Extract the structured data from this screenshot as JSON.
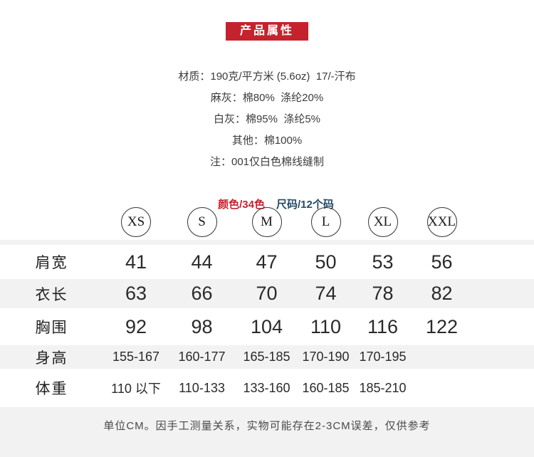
{
  "colors": {
    "banner_red": "#c4232e",
    "count_red": "#c4232e",
    "count_blue": "#254a66",
    "row_gray": "#f2f2f2"
  },
  "header": {
    "title": "产品属性"
  },
  "specs": {
    "lines": [
      "材质：190克/平方米 (5.6oz)  17/-汗布",
      "麻灰：棉80%  涤纶20%",
      "白灰：棉95%  涤纶5%",
      "其他：棉100%",
      "注：001仅白色棉线缝制"
    ],
    "color_count": "颜色/34色",
    "size_count": "尺码/12个码"
  },
  "size_chart": {
    "sizes": [
      "XS",
      "S",
      "M",
      "L",
      "XL",
      "XXL"
    ],
    "rows": [
      {
        "label": "肩宽",
        "values": [
          "41",
          "44",
          "47",
          "50",
          "53",
          "56"
        ]
      },
      {
        "label": "衣长",
        "values": [
          "63",
          "66",
          "70",
          "74",
          "78",
          "82"
        ]
      },
      {
        "label": "胸围",
        "values": [
          "92",
          "98",
          "104",
          "110",
          "116",
          "122"
        ]
      },
      {
        "label": "身高",
        "values": [
          "155-167",
          "160-177",
          "165-185",
          "170-190",
          "170-195",
          ""
        ]
      },
      {
        "label": "体重",
        "values": [
          "110 以下",
          "110-133",
          "133-160",
          "160-185",
          "185-210",
          ""
        ]
      }
    ],
    "footnote": "单位CM。因手工测量关系，实物可能存在2-3CM误差，仅供参考"
  }
}
